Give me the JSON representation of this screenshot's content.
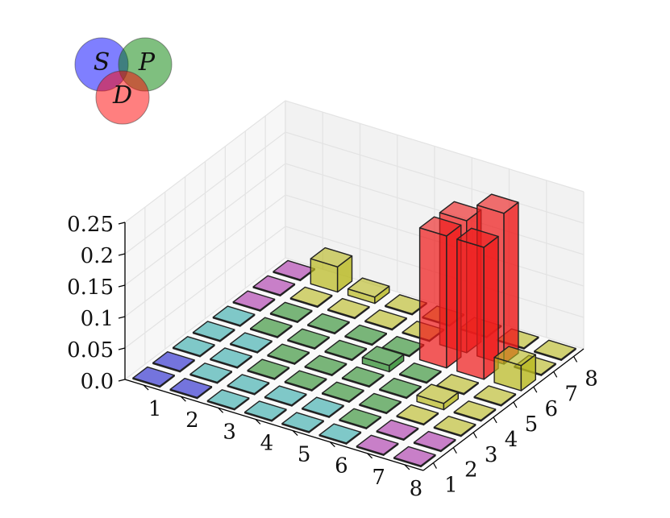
{
  "chart_data": {
    "type": "bar3d",
    "x_ticks": [
      "1",
      "2",
      "3",
      "4",
      "5",
      "6",
      "7",
      "8"
    ],
    "y_ticks": [
      "1",
      "2",
      "3",
      "4",
      "5",
      "6",
      "7",
      "8"
    ],
    "z_ticks": [
      "0.0",
      "0.05",
      "0.1",
      "0.15",
      "0.2",
      "0.25"
    ],
    "zlim": [
      0,
      0.25
    ],
    "grid": true,
    "legend": {
      "placement": "top-left",
      "type": "venn",
      "sets": [
        {
          "label": "S",
          "color": "#0000ff"
        },
        {
          "label": "P",
          "color": "#008000"
        },
        {
          "label": "D",
          "color": "#ff0000"
        }
      ]
    },
    "colors": {
      "blue": "#2222cc",
      "cyan": "#33aaaa",
      "green": "#2a8a2a",
      "yellow": "#b8b820",
      "magenta": "#aa33aa",
      "red": "#ee1c1c"
    },
    "bars": [
      {
        "x": 8,
        "y": 1,
        "value": 0.0,
        "color": "magenta"
      },
      {
        "x": 8,
        "y": 2,
        "value": 0.0,
        "color": "magenta"
      },
      {
        "x": 8,
        "y": 3,
        "value": 0.0,
        "color": "yellow"
      },
      {
        "x": 8,
        "y": 4,
        "value": 0.0,
        "color": "yellow"
      },
      {
        "x": 8,
        "y": 5,
        "value": 0.0,
        "color": "yellow"
      },
      {
        "x": 8,
        "y": 6,
        "value": 0.04,
        "color": "yellow"
      },
      {
        "x": 8,
        "y": 7,
        "value": 0.0,
        "color": "yellow"
      },
      {
        "x": 8,
        "y": 8,
        "value": 0.0,
        "color": "yellow"
      },
      {
        "x": 7,
        "y": 1,
        "value": 0.0,
        "color": "magenta"
      },
      {
        "x": 7,
        "y": 2,
        "value": 0.0,
        "color": "magenta"
      },
      {
        "x": 7,
        "y": 3,
        "value": 0.0,
        "color": "yellow"
      },
      {
        "x": 7,
        "y": 4,
        "value": 0.01,
        "color": "yellow"
      },
      {
        "x": 7,
        "y": 5,
        "value": 0.0,
        "color": "yellow"
      },
      {
        "x": 7,
        "y": 6,
        "value": 0.21,
        "color": "red"
      },
      {
        "x": 7,
        "y": 7,
        "value": 0.24,
        "color": "red"
      },
      {
        "x": 7,
        "y": 8,
        "value": 0.0,
        "color": "yellow"
      },
      {
        "x": 6,
        "y": 1,
        "value": 0.0,
        "color": "cyan"
      },
      {
        "x": 6,
        "y": 2,
        "value": 0.0,
        "color": "green"
      },
      {
        "x": 6,
        "y": 3,
        "value": 0.0,
        "color": "green"
      },
      {
        "x": 6,
        "y": 4,
        "value": 0.0,
        "color": "green"
      },
      {
        "x": 6,
        "y": 5,
        "value": 0.0,
        "color": "green"
      },
      {
        "x": 6,
        "y": 6,
        "value": 0.21,
        "color": "red"
      },
      {
        "x": 6,
        "y": 7,
        "value": 0.21,
        "color": "red"
      },
      {
        "x": 6,
        "y": 8,
        "value": 0.0,
        "color": "yellow"
      },
      {
        "x": 5,
        "y": 1,
        "value": 0.0,
        "color": "cyan"
      },
      {
        "x": 5,
        "y": 2,
        "value": 0.0,
        "color": "cyan"
      },
      {
        "x": 5,
        "y": 3,
        "value": 0.0,
        "color": "green"
      },
      {
        "x": 5,
        "y": 4,
        "value": 0.0,
        "color": "green"
      },
      {
        "x": 5,
        "y": 5,
        "value": 0.01,
        "color": "green"
      },
      {
        "x": 5,
        "y": 6,
        "value": 0.0,
        "color": "green"
      },
      {
        "x": 5,
        "y": 7,
        "value": 0.0,
        "color": "yellow"
      },
      {
        "x": 5,
        "y": 8,
        "value": 0.0,
        "color": "yellow"
      },
      {
        "x": 4,
        "y": 1,
        "value": 0.0,
        "color": "cyan"
      },
      {
        "x": 4,
        "y": 2,
        "value": 0.0,
        "color": "cyan"
      },
      {
        "x": 4,
        "y": 3,
        "value": 0.0,
        "color": "green"
      },
      {
        "x": 4,
        "y": 4,
        "value": 0.0,
        "color": "green"
      },
      {
        "x": 4,
        "y": 5,
        "value": 0.0,
        "color": "green"
      },
      {
        "x": 4,
        "y": 6,
        "value": 0.0,
        "color": "green"
      },
      {
        "x": 4,
        "y": 7,
        "value": 0.0,
        "color": "yellow"
      },
      {
        "x": 4,
        "y": 8,
        "value": 0.0,
        "color": "yellow"
      },
      {
        "x": 3,
        "y": 1,
        "value": 0.0,
        "color": "cyan"
      },
      {
        "x": 3,
        "y": 2,
        "value": 0.0,
        "color": "cyan"
      },
      {
        "x": 3,
        "y": 3,
        "value": 0.0,
        "color": "green"
      },
      {
        "x": 3,
        "y": 4,
        "value": 0.0,
        "color": "green"
      },
      {
        "x": 3,
        "y": 5,
        "value": 0.0,
        "color": "green"
      },
      {
        "x": 3,
        "y": 6,
        "value": 0.0,
        "color": "green"
      },
      {
        "x": 3,
        "y": 7,
        "value": 0.0,
        "color": "yellow"
      },
      {
        "x": 3,
        "y": 8,
        "value": 0.01,
        "color": "yellow"
      },
      {
        "x": 2,
        "y": 1,
        "value": 0.0,
        "color": "blue"
      },
      {
        "x": 2,
        "y": 2,
        "value": 0.0,
        "color": "cyan"
      },
      {
        "x": 2,
        "y": 3,
        "value": 0.0,
        "color": "cyan"
      },
      {
        "x": 2,
        "y": 4,
        "value": 0.0,
        "color": "cyan"
      },
      {
        "x": 2,
        "y": 5,
        "value": 0.0,
        "color": "green"
      },
      {
        "x": 2,
        "y": 6,
        "value": 0.0,
        "color": "green"
      },
      {
        "x": 2,
        "y": 7,
        "value": 0.0,
        "color": "yellow"
      },
      {
        "x": 2,
        "y": 8,
        "value": 0.04,
        "color": "yellow"
      },
      {
        "x": 1,
        "y": 1,
        "value": 0.0,
        "color": "blue"
      },
      {
        "x": 1,
        "y": 2,
        "value": 0.0,
        "color": "blue"
      },
      {
        "x": 1,
        "y": 3,
        "value": 0.0,
        "color": "cyan"
      },
      {
        "x": 1,
        "y": 4,
        "value": 0.0,
        "color": "cyan"
      },
      {
        "x": 1,
        "y": 5,
        "value": 0.0,
        "color": "cyan"
      },
      {
        "x": 1,
        "y": 6,
        "value": 0.0,
        "color": "magenta"
      },
      {
        "x": 1,
        "y": 7,
        "value": 0.0,
        "color": "magenta"
      },
      {
        "x": 1,
        "y": 8,
        "value": 0.0,
        "color": "magenta"
      }
    ]
  }
}
